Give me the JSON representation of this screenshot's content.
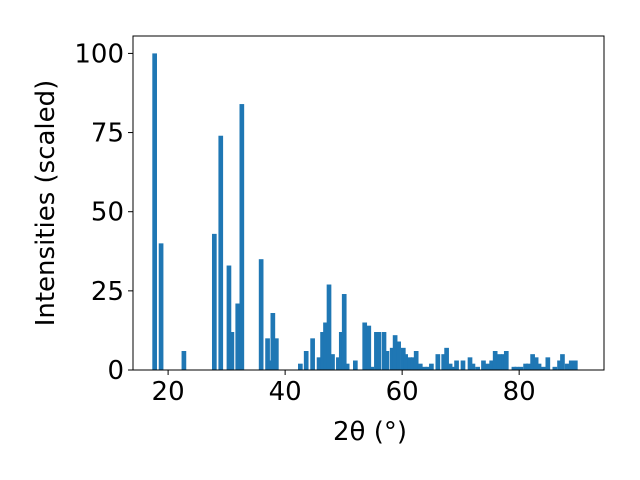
{
  "chart_data": {
    "type": "bar",
    "xlabel": "2θ (°)",
    "ylabel": "Intensities (scaled)",
    "xlim": [
      14,
      94.5
    ],
    "ylim": [
      0,
      105.5
    ],
    "xticks": [
      20,
      40,
      60,
      80
    ],
    "yticks": [
      0,
      25,
      50,
      75,
      100
    ],
    "bar_color": "#1f77b4",
    "bar_width": 0.8,
    "x": [
      17.7,
      18.8,
      22.7,
      27.9,
      29.0,
      30.4,
      30.9,
      31.9,
      32.6,
      35.9,
      37.0,
      37.4,
      37.9,
      38.5,
      42.6,
      43.6,
      44.7,
      45.8,
      46.4,
      46.9,
      47.5,
      48.1,
      49.1,
      49.6,
      50.1,
      50.6,
      52.0,
      53.6,
      54.3,
      54.8,
      55.6,
      56.0,
      56.9,
      57.4,
      58.3,
      58.8,
      59.4,
      60.2,
      60.6,
      61.3,
      61.9,
      62.4,
      63.1,
      63.8,
      64.4,
      65.0,
      66.1,
      67.1,
      67.6,
      68.2,
      68.6,
      69.3,
      70.4,
      71.6,
      72.1,
      72.9,
      73.9,
      74.6,
      75.3,
      75.9,
      76.6,
      77.3,
      77.8,
      79.1,
      79.6,
      80.3,
      81.1,
      81.6,
      82.3,
      82.9,
      83.4,
      84.1,
      84.9,
      86.1,
      86.9,
      87.4,
      88.2,
      88.9,
      89.6
    ],
    "values": [
      100,
      40,
      6,
      43,
      74,
      33,
      12,
      21,
      84,
      35,
      10,
      3,
      18,
      10,
      2,
      6,
      10,
      4,
      12,
      15,
      27,
      5,
      4,
      12,
      24,
      2,
      3,
      15,
      14,
      1,
      12,
      12,
      12,
      6,
      7,
      11,
      9,
      7,
      5,
      4,
      4,
      6,
      2,
      1,
      1,
      2,
      5,
      5,
      7,
      2,
      1,
      3,
      3,
      4,
      2,
      1,
      3,
      2,
      3,
      6,
      5,
      5,
      6,
      1,
      1,
      1,
      2,
      2,
      5,
      4,
      2,
      1,
      4,
      1,
      3,
      5,
      2,
      3,
      3
    ]
  }
}
